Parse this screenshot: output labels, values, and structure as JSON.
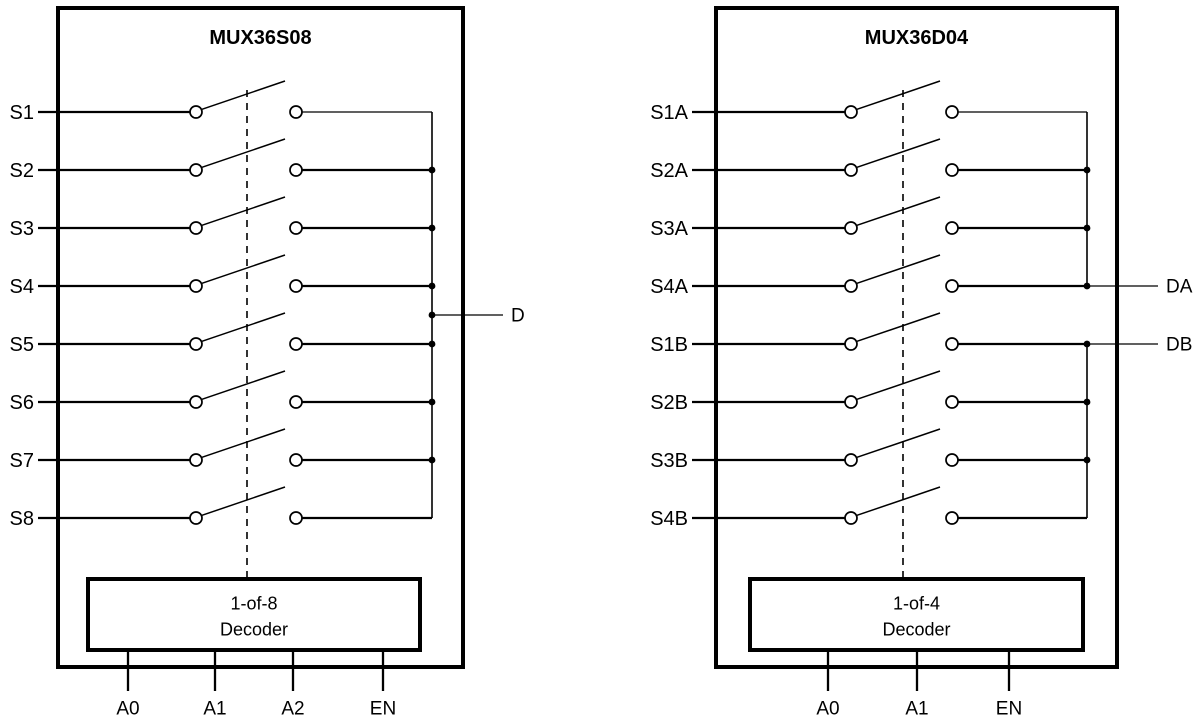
{
  "colors": {
    "line": "#000000",
    "text": "#000000",
    "background": "#ffffff"
  },
  "diagrams": [
    {
      "title": "MUX36S08",
      "inputs": [
        "S1",
        "S2",
        "S3",
        "S4",
        "S5",
        "S6",
        "S7",
        "S8"
      ],
      "buses": [
        {
          "from_row": 0,
          "to_row": 7,
          "output": {
            "label": "D",
            "position": "middle"
          }
        }
      ],
      "decoder": {
        "lines": [
          "1-of-8",
          "Decoder"
        ]
      },
      "controls": [
        "A0",
        "A1",
        "A2",
        "EN"
      ]
    },
    {
      "title": "MUX36D04",
      "inputs": [
        "S1A",
        "S2A",
        "S3A",
        "S4A",
        "S1B",
        "S2B",
        "S3B",
        "S4B"
      ],
      "buses": [
        {
          "from_row": 0,
          "to_row": 3,
          "output": {
            "label": "DA",
            "position": "end"
          }
        },
        {
          "from_row": 4,
          "to_row": 7,
          "output": {
            "label": "DB",
            "position": "start"
          }
        }
      ],
      "decoder": {
        "lines": [
          "1-of-4",
          "Decoder"
        ]
      },
      "controls": [
        "A0",
        "A1",
        "EN"
      ]
    }
  ]
}
